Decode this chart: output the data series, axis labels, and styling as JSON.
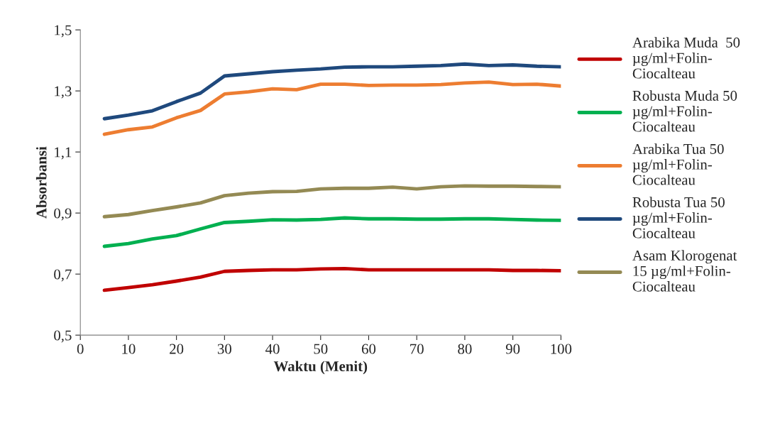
{
  "chart_data": {
    "type": "line",
    "xlabel": "Waktu (Menit)",
    "ylabel": "Absorbansi",
    "x": [
      5,
      10,
      15,
      20,
      25,
      30,
      35,
      40,
      45,
      50,
      55,
      60,
      65,
      70,
      75,
      80,
      85,
      90,
      95,
      100
    ],
    "series": [
      {
        "name": "Arabika Muda  50\nµg/ml+Folin-\nCiocalteau",
        "color": "#c00000",
        "values": [
          0.647,
          0.656,
          0.665,
          0.677,
          0.69,
          0.709,
          0.712,
          0.714,
          0.714,
          0.717,
          0.718,
          0.714,
          0.714,
          0.714,
          0.714,
          0.714,
          0.714,
          0.712,
          0.712,
          0.711
        ]
      },
      {
        "name": "Robusta Muda 50\nµg/ml+Folin-\nCiocalteau",
        "color": "#00b050",
        "values": [
          0.791,
          0.8,
          0.815,
          0.826,
          0.848,
          0.869,
          0.873,
          0.878,
          0.877,
          0.879,
          0.884,
          0.881,
          0.881,
          0.88,
          0.88,
          0.881,
          0.881,
          0.879,
          0.877,
          0.876
        ]
      },
      {
        "name": "Arabika Tua 50\nµg/ml+Folin-\nCiocalteau",
        "color": "#ed7d31",
        "values": [
          1.158,
          1.173,
          1.182,
          1.212,
          1.236,
          1.29,
          1.297,
          1.307,
          1.304,
          1.322,
          1.322,
          1.318,
          1.319,
          1.319,
          1.321,
          1.326,
          1.329,
          1.321,
          1.322,
          1.316
        ]
      },
      {
        "name": "Robusta Tua 50\nµg/ml+Folin-\nCiocalteau",
        "color": "#1f497d",
        "values": [
          1.209,
          1.221,
          1.235,
          1.265,
          1.293,
          1.349,
          1.356,
          1.363,
          1.368,
          1.372,
          1.378,
          1.379,
          1.379,
          1.381,
          1.383,
          1.388,
          1.383,
          1.385,
          1.381,
          1.379
        ]
      },
      {
        "name": "Asam Klorogenat\n15 µg/ml+Folin-\nCiocalteau",
        "color": "#948a54",
        "values": [
          0.888,
          0.895,
          0.908,
          0.92,
          0.933,
          0.957,
          0.965,
          0.97,
          0.971,
          0.979,
          0.981,
          0.981,
          0.985,
          0.979,
          0.986,
          0.989,
          0.988,
          0.988,
          0.987,
          0.986
        ]
      }
    ],
    "xlim": [
      0,
      100
    ],
    "xticks": [
      0,
      10,
      20,
      30,
      40,
      50,
      60,
      70,
      80,
      90,
      100
    ],
    "ylim": [
      0.5,
      1.5
    ],
    "yticks": [
      {
        "value": 0.5,
        "label": "0,5"
      },
      {
        "value": 0.7,
        "label": "0,7"
      },
      {
        "value": 0.9,
        "label": "0,9"
      },
      {
        "value": 1.1,
        "label": "1,1"
      },
      {
        "value": 1.3,
        "label": "1,3"
      },
      {
        "value": 1.5,
        "label": "1,5"
      }
    ],
    "grid": false,
    "legend": "right"
  }
}
